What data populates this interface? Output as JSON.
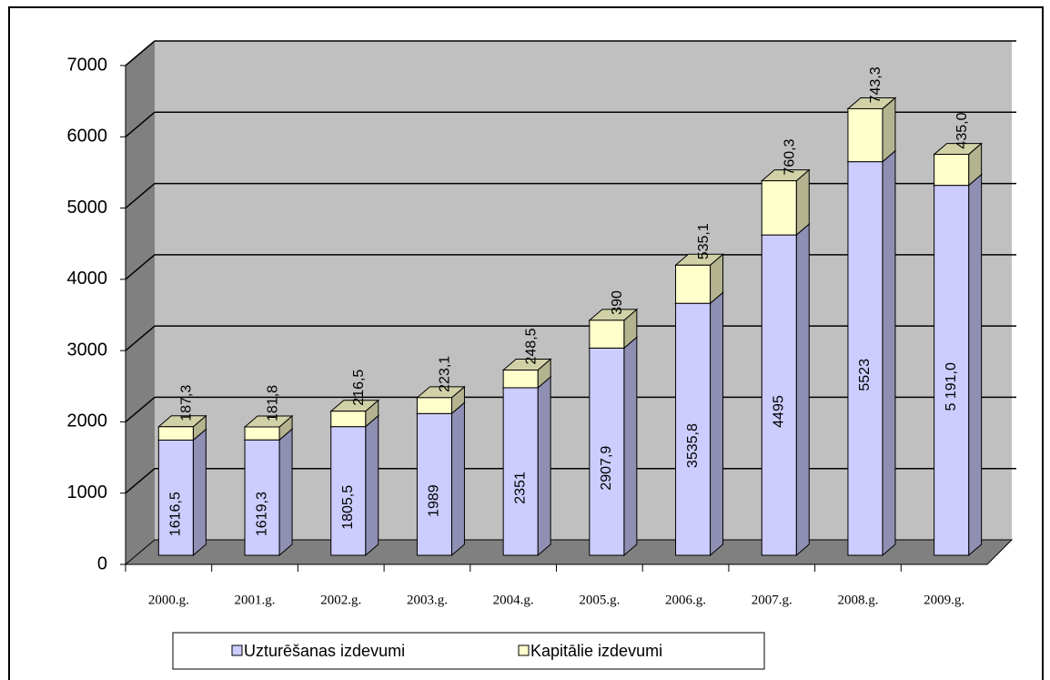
{
  "chart_data": {
    "type": "bar3d_stacked",
    "categories": [
      "2000.g.",
      "2001.g.",
      "2002.g.",
      "2003.g.",
      "2004.g.",
      "2005.g.",
      "2006.g.",
      "2007.g.",
      "2008.g.",
      "2009.g."
    ],
    "series": [
      {
        "name": "Uzturēšanas izdevumi",
        "color": "#ccccff",
        "values": [
          1616.5,
          1619.3,
          1805.5,
          1989,
          2351,
          2907.9,
          3535.8,
          4495,
          5523,
          5191.0
        ],
        "value_labels": [
          "1616,5",
          "1619,3",
          "1805,5",
          "1989",
          "2351",
          "2907,9",
          "3535,8",
          "4495",
          "5523",
          "5 191,0"
        ]
      },
      {
        "name": "Kapitālie izdevumi",
        "color": "#ffffcc",
        "values": [
          187.3,
          181.8,
          216.5,
          223.1,
          248.5,
          390,
          535.1,
          760.3,
          743.3,
          435.0
        ],
        "value_labels": [
          "187,3",
          "181,8",
          "216,5",
          "223,1",
          "248,5",
          "390",
          "535,1",
          "760,3",
          "743,3",
          "435,0"
        ]
      }
    ],
    "ylim": [
      0,
      7000
    ],
    "yticks": [
      0,
      1000,
      2000,
      3000,
      4000,
      5000,
      6000,
      7000
    ],
    "grid": true,
    "legend": "bottom"
  }
}
